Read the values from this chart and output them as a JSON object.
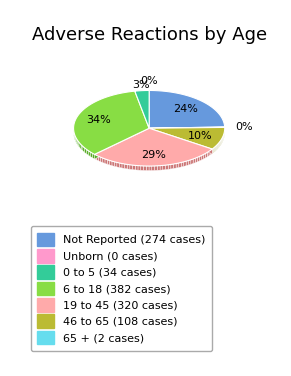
{
  "title": "Adverse Reactions by Age",
  "labels": [
    "Not Reported (274 cases)",
    "Unborn (0 cases)",
    "0 to 5 (34 cases)",
    "6 to 18 (382 cases)",
    "19 to 45 (320 cases)",
    "46 to 65 (108 cases)",
    "65 + (2 cases)"
  ],
  "short_labels": [
    "Not Reported",
    "Unborn",
    "0 to 5",
    "6 to 18",
    "19 to 45",
    "46 to 65",
    "65 +"
  ],
  "values": [
    274,
    0,
    34,
    382,
    320,
    108,
    2
  ],
  "colors": [
    "#6699dd",
    "#ff99cc",
    "#33cc99",
    "#88dd44",
    "#ffaaaa",
    "#bbbb33",
    "#66ddee"
  ],
  "dark_colors": [
    "#4477bb",
    "#dd6699",
    "#119977",
    "#55aa22",
    "#cc7777",
    "#888811",
    "#33aabb"
  ],
  "title_fontsize": 13,
  "legend_fontsize": 8
}
